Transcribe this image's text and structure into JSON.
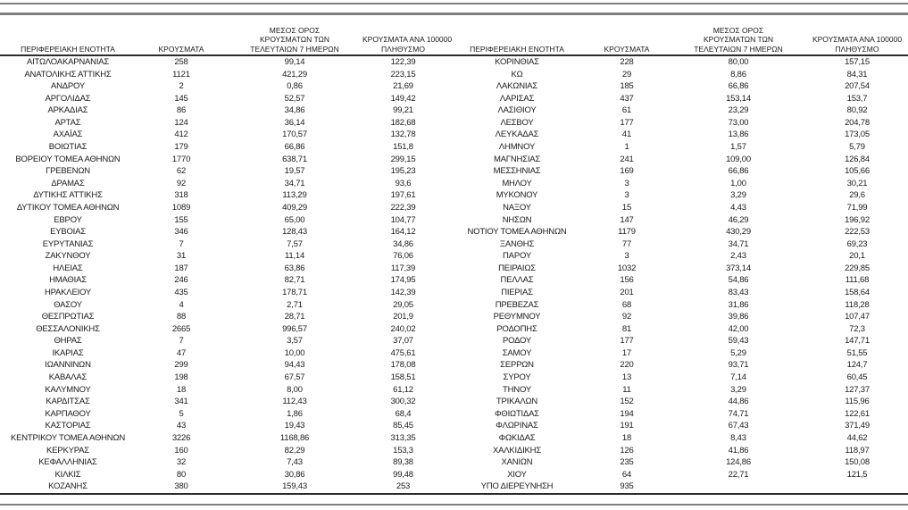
{
  "colors": {
    "rule_gray": "#808080",
    "rule_dark": "#2b2b2b",
    "text": "#1a1a1a",
    "background": "#ffffff"
  },
  "table": {
    "headers": {
      "region": "ΠΕΡΙΦΕΡΕΙΑΚΗ ΕΝΟΤΗΤΑ",
      "cases": "ΚΡΟΥΣΜΑΤΑ",
      "avg7": "ΜΕΣΟΣ ΟΡΟΣ\nΚΡΟΥΣΜΑΤΩΝ ΤΩΝ\nΤΕΛΕΥΤΑΙΩΝ 7 ΗΜΕΡΩΝ",
      "per100k": "ΚΡΟΥΣΜΑΤΑ ΑΝΑ 100000\nΠΛΗΘΥΣΜΟ"
    },
    "left_rows": [
      [
        "ΑΙΤΩΛΟΑΚΑΡΝΑΝΙΑΣ",
        "258",
        "99,14",
        "122,39"
      ],
      [
        "ΑΝΑΤΟΛΙΚΗΣ ΑΤΤΙΚΗΣ",
        "1121",
        "421,29",
        "223,15"
      ],
      [
        "ΑΝΔΡΟΥ",
        "2",
        "0,86",
        "21,69"
      ],
      [
        "ΑΡΓΟΛΙΔΑΣ",
        "145",
        "52,57",
        "149,42"
      ],
      [
        "ΑΡΚΑΔΙΑΣ",
        "86",
        "34,86",
        "99,21"
      ],
      [
        "ΑΡΤΑΣ",
        "124",
        "36,14",
        "182,68"
      ],
      [
        "ΑΧΑΪΑΣ",
        "412",
        "170,57",
        "132,78"
      ],
      [
        "ΒΟΙΩΤΙΑΣ",
        "179",
        "66,86",
        "151,8"
      ],
      [
        "ΒΟΡΕΙΟΥ ΤΟΜΕΑ ΑΘΗΝΩΝ",
        "1770",
        "638,71",
        "299,15"
      ],
      [
        "ΓΡΕΒΕΝΩΝ",
        "62",
        "19,57",
        "195,23"
      ],
      [
        "ΔΡΑΜΑΣ",
        "92",
        "34,71",
        "93,6"
      ],
      [
        "ΔΥΤΙΚΗΣ ΑΤΤΙΚΗΣ",
        "318",
        "113,29",
        "197,61"
      ],
      [
        "ΔΥΤΙΚΟΥ ΤΟΜΕΑ ΑΘΗΝΩΝ",
        "1089",
        "409,29",
        "222,39"
      ],
      [
        "ΕΒΡΟΥ",
        "155",
        "65,00",
        "104,77"
      ],
      [
        "ΕΥΒΟΙΑΣ",
        "346",
        "128,43",
        "164,12"
      ],
      [
        "ΕΥΡΥΤΑΝΙΑΣ",
        "7",
        "7,57",
        "34,86"
      ],
      [
        "ΖΑΚΥΝΘΟΥ",
        "31",
        "11,14",
        "76,06"
      ],
      [
        "ΗΛΕΙΑΣ",
        "187",
        "63,86",
        "117,39"
      ],
      [
        "ΗΜΑΘΙΑΣ",
        "246",
        "82,71",
        "174,95"
      ],
      [
        "ΗΡΑΚΛΕΙΟΥ",
        "435",
        "178,71",
        "142,39"
      ],
      [
        "ΘΑΣΟΥ",
        "4",
        "2,71",
        "29,05"
      ],
      [
        "ΘΕΣΠΡΩΤΙΑΣ",
        "88",
        "28,71",
        "201,9"
      ],
      [
        "ΘΕΣΣΑΛΟΝΙΚΗΣ",
        "2665",
        "996,57",
        "240,02"
      ],
      [
        "ΘΗΡΑΣ",
        "7",
        "3,57",
        "37,07"
      ],
      [
        "ΙΚΑΡΙΑΣ",
        "47",
        "10,00",
        "475,61"
      ],
      [
        "ΙΩΑΝΝΙΝΩΝ",
        "299",
        "94,43",
        "178,08"
      ],
      [
        "ΚΑΒΑΛΑΣ",
        "198",
        "67,57",
        "158,51"
      ],
      [
        "ΚΑΛΥΜΝΟΥ",
        "18",
        "8,00",
        "61,12"
      ],
      [
        "ΚΑΡΔΙΤΣΑΣ",
        "341",
        "112,43",
        "300,32"
      ],
      [
        "ΚΑΡΠΑΘΟΥ",
        "5",
        "1,86",
        "68,4"
      ],
      [
        "ΚΑΣΤΟΡΙΑΣ",
        "43",
        "19,43",
        "85,45"
      ],
      [
        "ΚΕΝΤΡΙΚΟΥ ΤΟΜΕΑ ΑΘΗΝΩΝ",
        "3226",
        "1168,86",
        "313,35"
      ],
      [
        "ΚΕΡΚΥΡΑΣ",
        "160",
        "82,29",
        "153,3"
      ],
      [
        "ΚΕΦΑΛΛΗΝΙΑΣ",
        "32",
        "7,43",
        "89,38"
      ],
      [
        "ΚΙΛΚΙΣ",
        "80",
        "30,86",
        "99,48"
      ],
      [
        "ΚΟΖΑΝΗΣ",
        "380",
        "159,43",
        "253"
      ]
    ],
    "right_rows": [
      [
        "ΚΟΡΙΝΘΙΑΣ",
        "228",
        "80,00",
        "157,15"
      ],
      [
        "ΚΩ",
        "29",
        "8,86",
        "84,31"
      ],
      [
        "ΛΑΚΩΝΙΑΣ",
        "185",
        "66,86",
        "207,54"
      ],
      [
        "ΛΑΡΙΣΑΣ",
        "437",
        "153,14",
        "153,7"
      ],
      [
        "ΛΑΣΙΘΙΟΥ",
        "61",
        "23,29",
        "80,92"
      ],
      [
        "ΛΕΣΒΟΥ",
        "177",
        "73,00",
        "204,78"
      ],
      [
        "ΛΕΥΚΑΔΑΣ",
        "41",
        "13,86",
        "173,05"
      ],
      [
        "ΛΗΜΝΟΥ",
        "1",
        "1,57",
        "5,79"
      ],
      [
        "ΜΑΓΝΗΣΙΑΣ",
        "241",
        "109,00",
        "126,84"
      ],
      [
        "ΜΕΣΣΗΝΙΑΣ",
        "169",
        "66,86",
        "105,66"
      ],
      [
        "ΜΗΛΟΥ",
        "3",
        "1,00",
        "30,21"
      ],
      [
        "ΜΥΚΟΝΟΥ",
        "3",
        "3,29",
        "29,6"
      ],
      [
        "ΝΑΞΟΥ",
        "15",
        "4,43",
        "71,99"
      ],
      [
        "ΝΗΣΩΝ",
        "147",
        "46,29",
        "196,92"
      ],
      [
        "ΝΟΤΙΟΥ ΤΟΜΕΑ ΑΘΗΝΩΝ",
        "1179",
        "430,29",
        "222,53"
      ],
      [
        "ΞΑΝΘΗΣ",
        "77",
        "34,71",
        "69,23"
      ],
      [
        "ΠΑΡΟΥ",
        "3",
        "2,43",
        "20,1"
      ],
      [
        "ΠΕΙΡΑΙΩΣ",
        "1032",
        "373,14",
        "229,85"
      ],
      [
        "ΠΕΛΛΑΣ",
        "156",
        "54,86",
        "111,68"
      ],
      [
        "ΠΙΕΡΙΑΣ",
        "201",
        "83,43",
        "158,64"
      ],
      [
        "ΠΡΕΒΕΖΑΣ",
        "68",
        "31,86",
        "118,28"
      ],
      [
        "ΡΕΘΥΜΝΟΥ",
        "92",
        "39,86",
        "107,47"
      ],
      [
        "ΡΟΔΟΠΗΣ",
        "81",
        "42,00",
        "72,3"
      ],
      [
        "ΡΟΔΟΥ",
        "177",
        "59,43",
        "147,71"
      ],
      [
        "ΣΑΜΟΥ",
        "17",
        "5,29",
        "51,55"
      ],
      [
        "ΣΕΡΡΩΝ",
        "220",
        "93,71",
        "124,7"
      ],
      [
        "ΣΥΡΟΥ",
        "13",
        "7,14",
        "60,45"
      ],
      [
        "ΤΗΝΟΥ",
        "11",
        "3,29",
        "127,37"
      ],
      [
        "ΤΡΙΚΑΛΩΝ",
        "152",
        "44,86",
        "115,96"
      ],
      [
        "ΦΘΙΩΤΙΔΑΣ",
        "194",
        "74,71",
        "122,61"
      ],
      [
        "ΦΛΩΡΙΝΑΣ",
        "191",
        "67,43",
        "371,49"
      ],
      [
        "ΦΩΚΙΔΑΣ",
        "18",
        "8,43",
        "44,62"
      ],
      [
        "ΧΑΛΚΙΔΙΚΗΣ",
        "126",
        "41,86",
        "118,97"
      ],
      [
        "ΧΑΝΙΩΝ",
        "235",
        "124,86",
        "150,08"
      ],
      [
        "ΧΙΟΥ",
        "64",
        "22,71",
        "121,5"
      ],
      [
        "ΥΠΟ ΔΙΕΡΕΥΝΗΣΗ",
        "935",
        "",
        ""
      ]
    ]
  }
}
